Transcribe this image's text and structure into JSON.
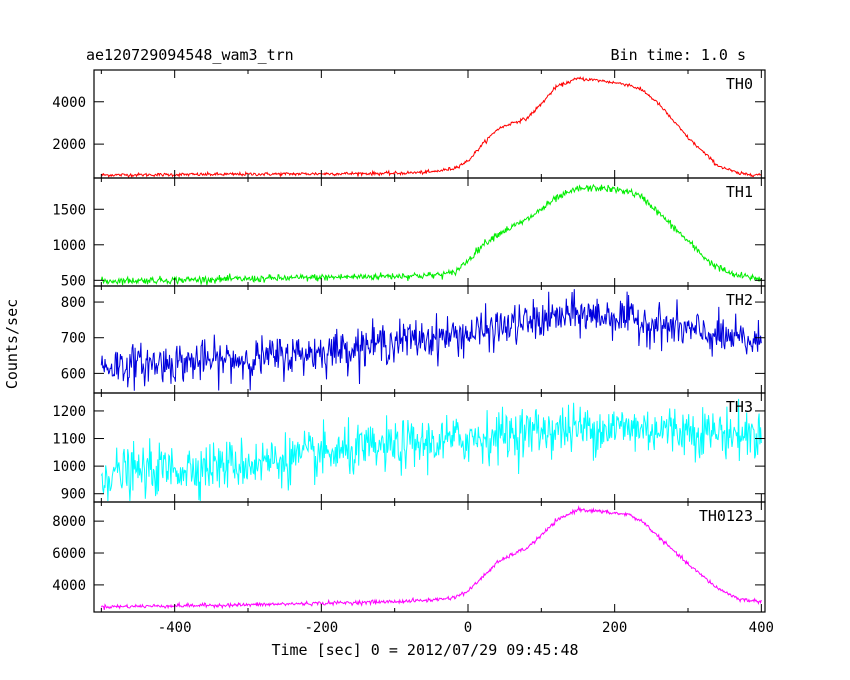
{
  "chart_data": {
    "type": "line",
    "title": "ae120729094548_wam3_trn",
    "bin_time_label": "Bin time: 1.0 s",
    "xlabel": "Time [sec] 0 = 2012/07/29 09:45:48",
    "ylabel": "Counts/sec",
    "xlim": [
      -510,
      405
    ],
    "x_ticks": [
      -400,
      -200,
      0,
      200,
      400
    ],
    "x_tick_labels": [
      "-400",
      "-200",
      "0",
      "200",
      "400"
    ],
    "panels": [
      {
        "name": "TH0",
        "color": "#ff0000",
        "ylim": [
          400,
          5500
        ],
        "y_ticks": [
          2000,
          4000
        ],
        "y_tick_labels": [
          "2000",
          "4000"
        ],
        "noise": 40,
        "profile": [
          [
            -500,
            540
          ],
          [
            -300,
            580
          ],
          [
            -100,
            620
          ],
          [
            -50,
            680
          ],
          [
            -20,
            850
          ],
          [
            0,
            1200
          ],
          [
            20,
            2000
          ],
          [
            40,
            2700
          ],
          [
            60,
            3000
          ],
          [
            80,
            3200
          ],
          [
            100,
            3900
          ],
          [
            120,
            4700
          ],
          [
            150,
            5100
          ],
          [
            180,
            5000
          ],
          [
            220,
            4800
          ],
          [
            240,
            4500
          ],
          [
            260,
            3900
          ],
          [
            300,
            2300
          ],
          [
            340,
            1000
          ],
          [
            370,
            600
          ],
          [
            400,
            550
          ]
        ]
      },
      {
        "name": "TH1",
        "color": "#00ee00",
        "ylim": [
          420,
          1940
        ],
        "y_ticks": [
          500,
          1000,
          1500
        ],
        "y_tick_labels": [
          "500",
          "1000",
          "1500"
        ],
        "noise": 25,
        "profile": [
          [
            -500,
            490
          ],
          [
            -300,
            520
          ],
          [
            -100,
            560
          ],
          [
            -50,
            570
          ],
          [
            -20,
            600
          ],
          [
            0,
            780
          ],
          [
            20,
            1000
          ],
          [
            40,
            1150
          ],
          [
            80,
            1350
          ],
          [
            100,
            1500
          ],
          [
            120,
            1650
          ],
          [
            150,
            1790
          ],
          [
            180,
            1800
          ],
          [
            220,
            1750
          ],
          [
            240,
            1650
          ],
          [
            260,
            1450
          ],
          [
            300,
            1050
          ],
          [
            330,
            750
          ],
          [
            360,
            580
          ],
          [
            400,
            520
          ]
        ]
      },
      {
        "name": "TH2",
        "color": "#0000dd",
        "ylim": [
          545,
          845
        ],
        "y_ticks": [
          600,
          700,
          800
        ],
        "y_tick_labels": [
          "600",
          "700",
          "800"
        ],
        "noise": 28,
        "profile": [
          [
            -500,
            620
          ],
          [
            -400,
            630
          ],
          [
            -300,
            640
          ],
          [
            -200,
            660
          ],
          [
            -100,
            690
          ],
          [
            0,
            710
          ],
          [
            50,
            730
          ],
          [
            100,
            750
          ],
          [
            150,
            765
          ],
          [
            200,
            760
          ],
          [
            250,
            740
          ],
          [
            300,
            720
          ],
          [
            350,
            700
          ],
          [
            400,
            685
          ]
        ]
      },
      {
        "name": "TH3",
        "color": "#00ffff",
        "ylim": [
          870,
          1265
        ],
        "y_ticks": [
          900,
          1000,
          1100,
          1200
        ],
        "y_tick_labels": [
          "900",
          "1000",
          "1100",
          "1200"
        ],
        "noise": 45,
        "profile": [
          [
            -500,
            970
          ],
          [
            -400,
            990
          ],
          [
            -300,
            1010
          ],
          [
            -200,
            1040
          ],
          [
            -100,
            1070
          ],
          [
            0,
            1100
          ],
          [
            100,
            1130
          ],
          [
            200,
            1140
          ],
          [
            300,
            1130
          ],
          [
            400,
            1110
          ]
        ]
      },
      {
        "name": "TH0123",
        "color": "#ff00ff",
        "ylim": [
          2300,
          9200
        ],
        "y_ticks": [
          4000,
          6000,
          8000
        ],
        "y_tick_labels": [
          "4000",
          "6000",
          "8000"
        ],
        "noise": 60,
        "profile": [
          [
            -500,
            2630
          ],
          [
            -300,
            2750
          ],
          [
            -100,
            2950
          ],
          [
            -50,
            3050
          ],
          [
            -20,
            3200
          ],
          [
            0,
            3600
          ],
          [
            20,
            4500
          ],
          [
            40,
            5400
          ],
          [
            60,
            5900
          ],
          [
            80,
            6300
          ],
          [
            100,
            7100
          ],
          [
            120,
            8000
          ],
          [
            150,
            8750
          ],
          [
            180,
            8600
          ],
          [
            220,
            8400
          ],
          [
            240,
            7900
          ],
          [
            260,
            7000
          ],
          [
            300,
            5300
          ],
          [
            340,
            3800
          ],
          [
            370,
            3100
          ],
          [
            400,
            2950
          ]
        ]
      }
    ],
    "legend": "none",
    "grid": false
  }
}
